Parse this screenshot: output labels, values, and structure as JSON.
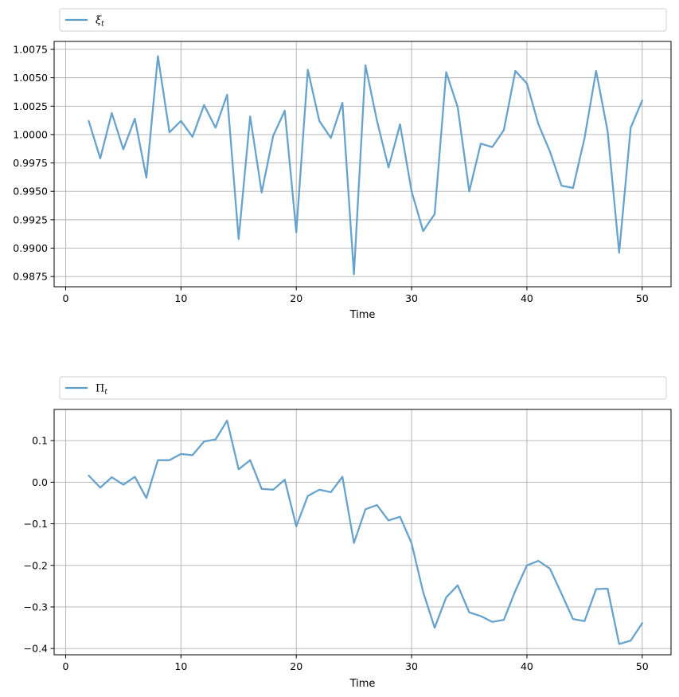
{
  "chart_data": [
    {
      "type": "line",
      "legend_label": "ξ",
      "legend_subscript": "t",
      "legend_position": "above plot, full width",
      "xlabel": "Time",
      "ylabel": "",
      "xlim": [
        -1,
        52.5
      ],
      "ylim": [
        0.9866,
        1.0082
      ],
      "xticks": [
        0,
        10,
        20,
        30,
        40,
        50
      ],
      "xtick_labels": [
        "0",
        "10",
        "20",
        "30",
        "40",
        "50"
      ],
      "yticks": [
        0.9875,
        0.99,
        0.9925,
        0.995,
        0.9975,
        1.0,
        1.0025,
        1.005,
        1.0075
      ],
      "ytick_labels": [
        "0.9875",
        "0.9900",
        "0.9925",
        "0.9950",
        "0.9975",
        "1.0000",
        "1.0025",
        "1.0050",
        "1.0075"
      ],
      "grid": true,
      "line_color": "#5f9ec9",
      "x": [
        2,
        3,
        4,
        5,
        6,
        7,
        8,
        9,
        10,
        11,
        12,
        13,
        14,
        15,
        16,
        17,
        18,
        19,
        20,
        21,
        22,
        23,
        24,
        25,
        26,
        27,
        28,
        29,
        30,
        31,
        32,
        33,
        34,
        35,
        36,
        37,
        38,
        39,
        40,
        41,
        42,
        43,
        44,
        45,
        46,
        47,
        48,
        49,
        50
      ],
      "values": [
        1.0012,
        0.9979,
        1.0019,
        0.9987,
        1.0014,
        0.9962,
        1.0069,
        1.0002,
        1.0012,
        0.9998,
        1.0026,
        1.0006,
        1.0035,
        0.9908,
        1.0016,
        0.9949,
        0.9999,
        1.0021,
        0.9914,
        1.0057,
        1.0012,
        0.9997,
        1.0028,
        0.9877,
        1.0061,
        1.0012,
        0.9971,
        1.0009,
        0.995,
        0.9915,
        0.993,
        1.0055,
        1.0024,
        0.995,
        0.9992,
        0.9989,
        1.0004,
        1.0056,
        1.0045,
        1.0009,
        0.9985,
        0.9955,
        0.9953,
        0.9997,
        1.0056,
        1.0003,
        0.9896,
        1.0006,
        1.003
      ]
    },
    {
      "type": "line",
      "legend_label": "Π",
      "legend_subscript": "t",
      "legend_position": "above plot, full width",
      "xlabel": "Time",
      "ylabel": "",
      "xlim": [
        -1,
        52.5
      ],
      "ylim": [
        -0.415,
        0.175
      ],
      "xticks": [
        0,
        10,
        20,
        30,
        40,
        50
      ],
      "xtick_labels": [
        "0",
        "10",
        "20",
        "30",
        "40",
        "50"
      ],
      "yticks": [
        -0.4,
        -0.3,
        -0.2,
        -0.1,
        0.0,
        0.1
      ],
      "ytick_labels": [
        "−0.4",
        "−0.3",
        "−0.2",
        "−0.1",
        "0.0",
        "0.1"
      ],
      "grid": true,
      "line_color": "#5f9ec9",
      "x": [
        2,
        3,
        4,
        5,
        6,
        7,
        8,
        9,
        10,
        11,
        12,
        13,
        14,
        15,
        16,
        17,
        18,
        19,
        20,
        21,
        22,
        23,
        24,
        25,
        26,
        27,
        28,
        29,
        30,
        31,
        32,
        33,
        34,
        35,
        36,
        37,
        38,
        39,
        40,
        41,
        42,
        43,
        44,
        45,
        46,
        47,
        48,
        49,
        50
      ],
      "values": [
        0.016,
        -0.013,
        0.012,
        -0.006,
        0.013,
        -0.038,
        0.053,
        0.053,
        0.068,
        0.065,
        0.098,
        0.103,
        0.148,
        0.031,
        0.053,
        -0.016,
        -0.018,
        0.006,
        -0.106,
        -0.033,
        -0.018,
        -0.024,
        0.013,
        -0.146,
        -0.065,
        -0.055,
        -0.092,
        -0.083,
        -0.147,
        -0.264,
        -0.35,
        -0.277,
        -0.248,
        -0.313,
        -0.322,
        -0.336,
        -0.331,
        -0.261,
        -0.2,
        -0.189,
        -0.208,
        -0.268,
        -0.329,
        -0.334,
        -0.257,
        -0.256,
        -0.389,
        -0.381,
        -0.339
      ]
    }
  ]
}
